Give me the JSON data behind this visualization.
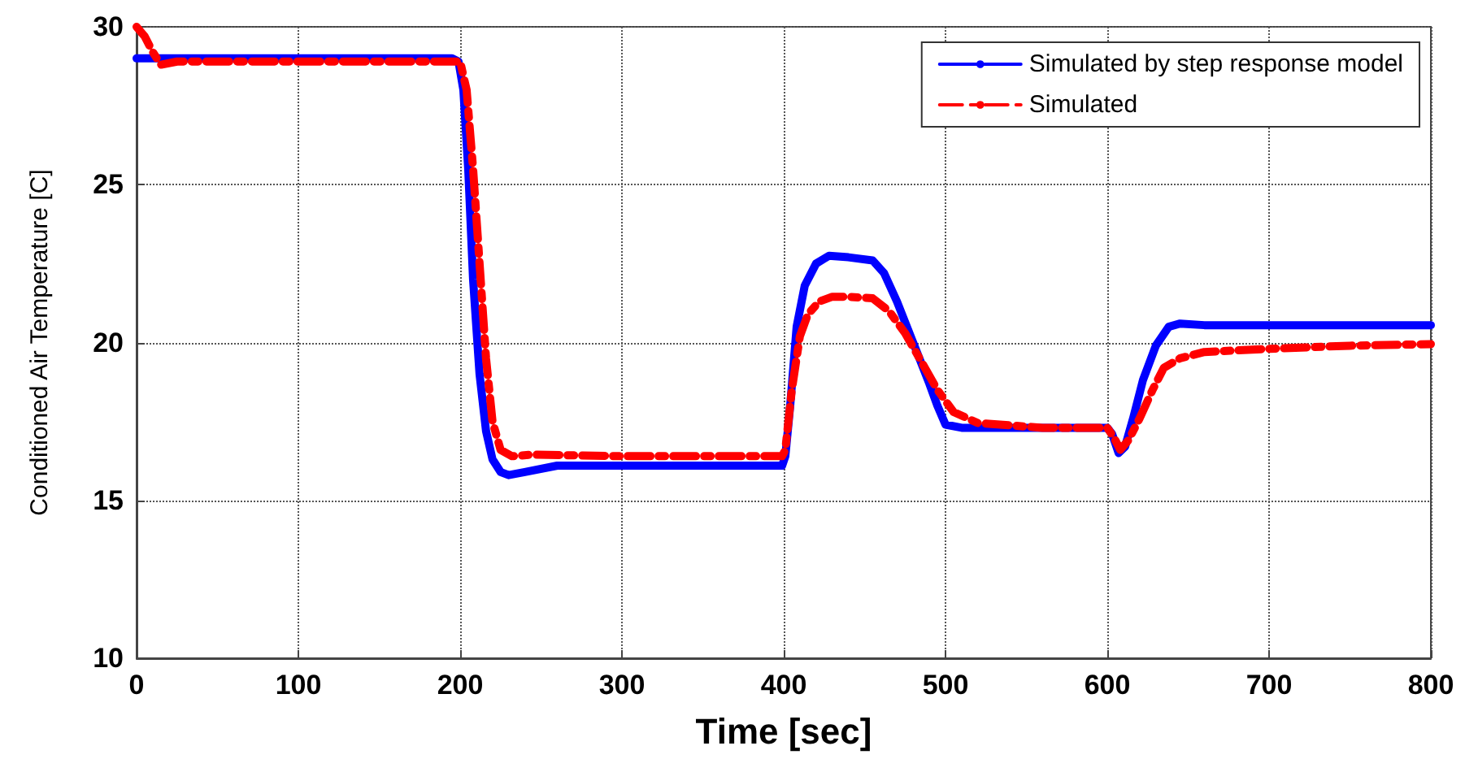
{
  "chart_data": {
    "type": "line",
    "xlabel": "Time [sec]",
    "ylabel": "Conditioned Air Temperature [C]",
    "xlim": [
      0,
      800
    ],
    "xticks": [
      0,
      100,
      200,
      300,
      400,
      500,
      600,
      700,
      800
    ],
    "ylim": [
      10,
      30
    ],
    "yticks": [
      10,
      15,
      20,
      25,
      30
    ],
    "grid": true,
    "legend": "top right",
    "marker": "none",
    "series": [
      {
        "name": "Simulated by step response model",
        "color": "#0000ff",
        "line_style": "solid",
        "x": [
          0,
          195,
          199,
          202,
          205,
          208,
          212,
          216,
          220,
          225,
          230,
          240,
          260,
          300,
          399,
          401,
          404,
          408,
          413,
          420,
          428,
          440,
          455,
          462,
          470,
          480,
          490,
          495,
          500,
          510,
          550,
          600,
          603,
          607,
          611,
          616,
          622,
          630,
          638,
          645,
          660,
          700,
          800
        ],
        "values": [
          29,
          29,
          28.9,
          28,
          25.5,
          22,
          19,
          17.2,
          16.3,
          15.9,
          15.8,
          15.9,
          16.1,
          16.1,
          16.1,
          16.4,
          18,
          20.5,
          21.8,
          22.5,
          22.75,
          22.7,
          22.6,
          22.2,
          21.3,
          20,
          18.7,
          18,
          17.4,
          17.3,
          17.3,
          17.3,
          17.1,
          16.5,
          16.7,
          17.6,
          18.8,
          19.9,
          20.5,
          20.6,
          20.55,
          20.55,
          20.55
        ]
      },
      {
        "name": "Simulated",
        "color": "#ff0000",
        "line_style": "dashed",
        "x": [
          0,
          5,
          10,
          15,
          25,
          60,
          150,
          200,
          204,
          208,
          212,
          216,
          220,
          225,
          232,
          245,
          300,
          399,
          401,
          405,
          410,
          415,
          422,
          430,
          440,
          455,
          465,
          475,
          485,
          495,
          505,
          520,
          560,
          600,
          604,
          608,
          613,
          620,
          628,
          635,
          645,
          660,
          700,
          750,
          800
        ],
        "values": [
          30,
          29.7,
          29.2,
          28.8,
          28.9,
          28.9,
          28.9,
          28.9,
          28,
          25.5,
          22.5,
          19.5,
          17.5,
          16.6,
          16.4,
          16.45,
          16.4,
          16.4,
          16.6,
          18.5,
          20.2,
          20.9,
          21.3,
          21.45,
          21.45,
          21.4,
          21.0,
          20.3,
          19.4,
          18.5,
          17.8,
          17.45,
          17.3,
          17.3,
          17.0,
          16.6,
          16.9,
          17.6,
          18.5,
          19.2,
          19.5,
          19.7,
          19.8,
          19.9,
          19.95
        ]
      }
    ]
  }
}
